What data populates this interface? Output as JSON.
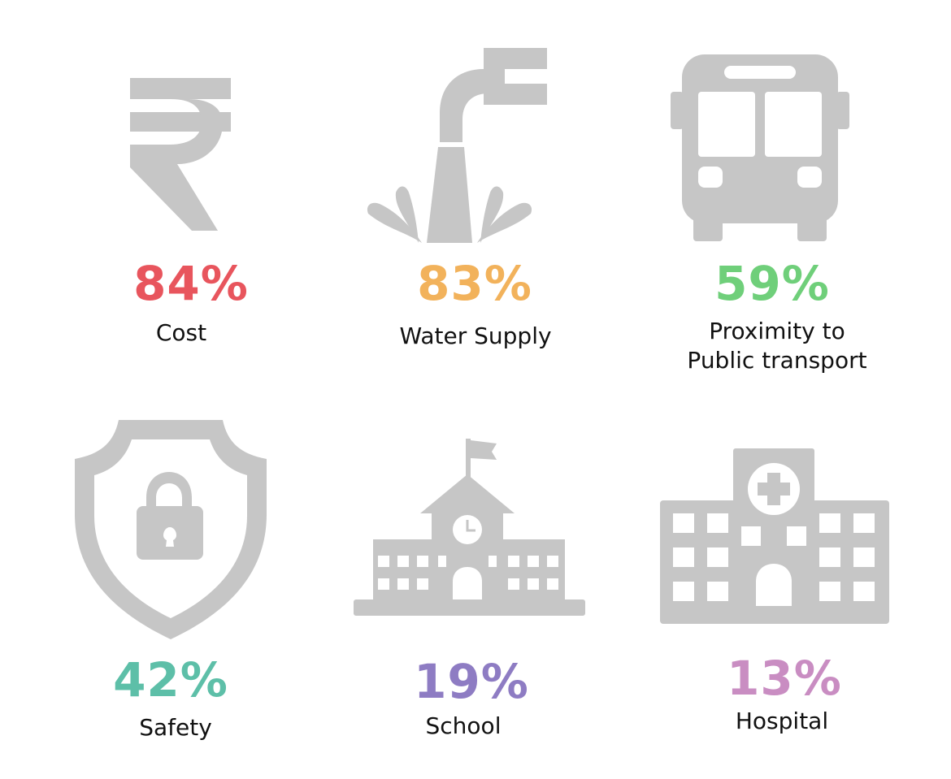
{
  "items": [
    {
      "percent": "84%",
      "label_lines": [
        "Cost"
      ],
      "color": "#e8555d",
      "icon": "rupee-icon"
    },
    {
      "percent": "83%",
      "label_lines": [
        "Water Supply"
      ],
      "color": "#f2b25b",
      "icon": "water-tap-icon"
    },
    {
      "percent": "59%",
      "label_lines": [
        "Proximity to",
        "Public transport"
      ],
      "color": "#6fcf7a",
      "icon": "bus-icon"
    },
    {
      "percent": "42%",
      "label_lines": [
        "Safety"
      ],
      "color": "#5dbfa8",
      "icon": "shield-lock-icon"
    },
    {
      "percent": "19%",
      "label_lines": [
        "School"
      ],
      "color": "#8e7cc3",
      "icon": "school-icon"
    },
    {
      "percent": "13%",
      "label_lines": [
        "Hospital"
      ],
      "color": "#c98dc2",
      "icon": "hospital-icon"
    }
  ],
  "icon_color": "#c6c6c6"
}
